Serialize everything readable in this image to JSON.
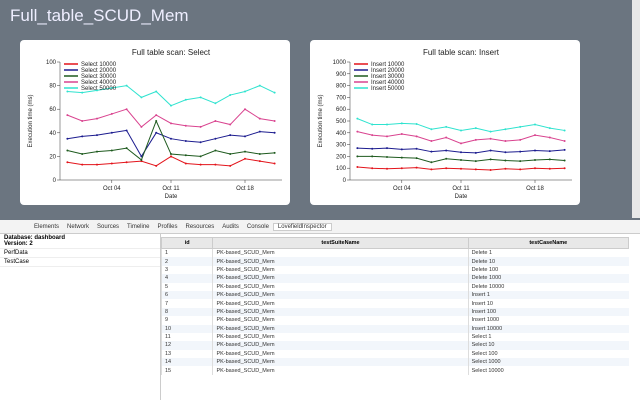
{
  "header": {
    "title": "Full_table_SCUD_Mem"
  },
  "chart_data": [
    {
      "type": "line",
      "title": "Full table scan: Select",
      "x_label": "Date",
      "y_label": "Execution time (ms)",
      "categories": [
        null,
        null,
        null,
        "Oct 04",
        null,
        null,
        null,
        "Oct 11",
        null,
        null,
        null,
        null,
        "Oct 18",
        null,
        null
      ],
      "ylim": [
        0,
        100
      ],
      "yticks": [
        0,
        20,
        40,
        60,
        80,
        100
      ],
      "series": [
        {
          "name": "Select 10000",
          "color": "#e3141b",
          "values": [
            15,
            13,
            13,
            14,
            15,
            16,
            12,
            20,
            14,
            13,
            13,
            12,
            18,
            16,
            14
          ]
        },
        {
          "name": "Select 20000",
          "color": "#1c1c8f",
          "values": [
            35,
            37,
            38,
            40,
            42,
            20,
            40,
            35,
            33,
            32,
            35,
            38,
            37,
            41,
            40
          ]
        },
        {
          "name": "Select 30000",
          "color": "#1e5a1e",
          "values": [
            25,
            22,
            24,
            25,
            27,
            17,
            50,
            22,
            21,
            20,
            25,
            22,
            24,
            22,
            23
          ]
        },
        {
          "name": "Select 40000",
          "color": "#d9438f",
          "values": [
            55,
            50,
            52,
            56,
            60,
            45,
            55,
            48,
            46,
            45,
            50,
            47,
            60,
            52,
            50
          ]
        },
        {
          "name": "Select 50000",
          "color": "#2fe3cf",
          "values": [
            75,
            74,
            76,
            78,
            80,
            70,
            75,
            63,
            68,
            70,
            65,
            72,
            75,
            80,
            74
          ]
        }
      ]
    },
    {
      "type": "line",
      "title": "Full table scan: Insert",
      "x_label": "Date",
      "y_label": "Execution time (ms)",
      "categories": [
        null,
        null,
        null,
        "Oct 04",
        null,
        null,
        null,
        "Oct 11",
        null,
        null,
        null,
        null,
        "Oct 18",
        null,
        null
      ],
      "ylim": [
        0,
        1000
      ],
      "yticks": [
        0,
        100,
        200,
        300,
        400,
        500,
        600,
        700,
        800,
        900,
        1000
      ],
      "series": [
        {
          "name": "Insert 10000",
          "color": "#e3141b",
          "values": [
            110,
            100,
            95,
            100,
            105,
            90,
            100,
            95,
            90,
            85,
            95,
            90,
            100,
            95,
            100
          ]
        },
        {
          "name": "Insert 20000",
          "color": "#1c1c8f",
          "values": [
            270,
            265,
            270,
            260,
            265,
            240,
            250,
            235,
            230,
            250,
            235,
            240,
            250,
            245,
            255
          ]
        },
        {
          "name": "Insert 30000",
          "color": "#1e5a1e",
          "values": [
            200,
            200,
            195,
            190,
            185,
            150,
            180,
            170,
            160,
            175,
            165,
            160,
            170,
            175,
            165
          ]
        },
        {
          "name": "Insert 40000",
          "color": "#d9438f",
          "values": [
            410,
            380,
            370,
            390,
            370,
            330,
            360,
            310,
            340,
            350,
            330,
            340,
            380,
            360,
            330
          ]
        },
        {
          "name": "Insert 50000",
          "color": "#2fe3cf",
          "values": [
            520,
            470,
            470,
            480,
            475,
            430,
            450,
            420,
            440,
            410,
            430,
            450,
            470,
            440,
            420
          ]
        }
      ]
    }
  ],
  "devtools": {
    "tabs": [
      "Elements",
      "Network",
      "Sources",
      "Timeline",
      "Profiles",
      "Resources",
      "Audits",
      "Console",
      "LovefieldInspector"
    ],
    "sidebar": {
      "database": "Database: dashboard",
      "version": "Version: 2",
      "tables": [
        "PerfData",
        "TestCase"
      ]
    },
    "table": {
      "columns": [
        "id",
        "testSuiteName",
        "testCaseName"
      ],
      "rows": [
        [
          1,
          "PK-based_SCUD_Mem",
          "Delete 1"
        ],
        [
          2,
          "PK-based_SCUD_Mem",
          "Delete 10"
        ],
        [
          3,
          "PK-based_SCUD_Mem",
          "Delete 100"
        ],
        [
          4,
          "PK-based_SCUD_Mem",
          "Delete 1000"
        ],
        [
          5,
          "PK-based_SCUD_Mem",
          "Delete 10000"
        ],
        [
          6,
          "PK-based_SCUD_Mem",
          "Insert 1"
        ],
        [
          7,
          "PK-based_SCUD_Mem",
          "Insert 10"
        ],
        [
          8,
          "PK-based_SCUD_Mem",
          "Insert 100"
        ],
        [
          9,
          "PK-based_SCUD_Mem",
          "Insert 1000"
        ],
        [
          10,
          "PK-based_SCUD_Mem",
          "Insert 10000"
        ],
        [
          11,
          "PK-based_SCUD_Mem",
          "Select 1"
        ],
        [
          12,
          "PK-based_SCUD_Mem",
          "Select 10"
        ],
        [
          13,
          "PK-based_SCUD_Mem",
          "Select 100"
        ],
        [
          14,
          "PK-based_SCUD_Mem",
          "Select 1000"
        ],
        [
          15,
          "PK-based_SCUD_Mem",
          "Select 10000"
        ]
      ]
    }
  }
}
